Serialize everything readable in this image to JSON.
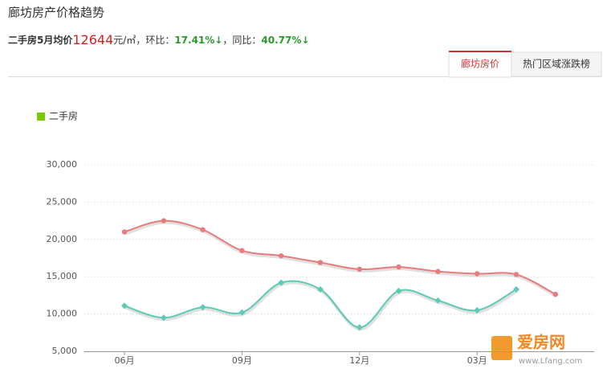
{
  "header": {
    "title": "廊坊房产价格趋势",
    "summary": {
      "label": "二手房5月均价",
      "price": 12644,
      "unit": "元/㎡",
      "mom_label": "，环比：",
      "mom": "17.41%↓",
      "yoy_label": "，同比：",
      "yoy": "40.77%↓"
    }
  },
  "tabs": [
    "廊坊房价",
    "热门区域涨跌榜"
  ],
  "chart_data": {
    "type": "line",
    "categories": [
      "06月",
      null,
      null,
      "09月",
      null,
      null,
      "12月",
      null,
      null,
      "03月",
      null,
      null
    ],
    "series": [
      {
        "color": "#e87b7b",
        "values": [
          21000,
          22500,
          21300,
          18500,
          17800,
          16900,
          16000,
          16300,
          15700,
          15400,
          15300,
          12644
        ]
      },
      {
        "name": "二手房",
        "color": "#5ccbb5",
        "values": [
          11100,
          9500,
          10900,
          10200,
          14200,
          13300,
          8200,
          13100,
          11800,
          10500,
          13300,
          null
        ]
      }
    ],
    "legend_color": "#7ac70c",
    "ylim": [
      5000,
      30000
    ],
    "yticks": [
      {
        "value": 5000,
        "label": "5,000"
      },
      {
        "value": 10000,
        "label": "10,000"
      },
      {
        "value": 15000,
        "label": "15,000"
      },
      {
        "value": 20000,
        "label": "20,000"
      },
      {
        "value": 25000,
        "label": "25,000"
      },
      {
        "value": 30000,
        "label": "30,000"
      }
    ],
    "grid": true
  },
  "watermark": {
    "name": "爱房网",
    "url": "www.Lfang.com"
  }
}
